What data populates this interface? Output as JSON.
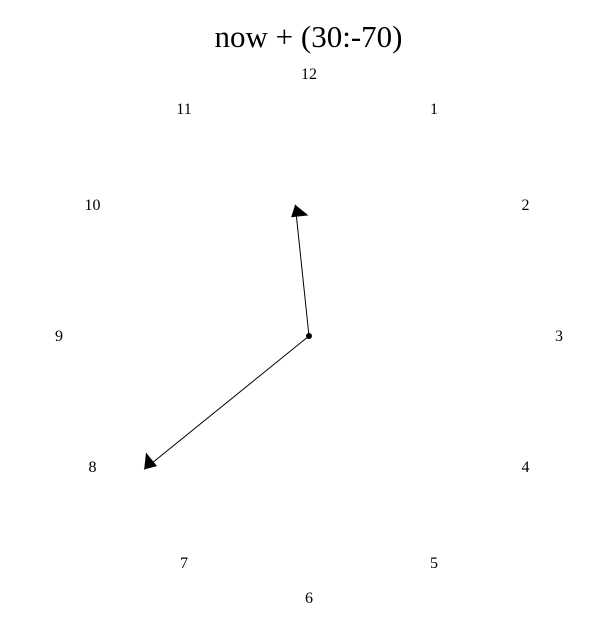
{
  "title": "now + (30:-70)",
  "colors": {
    "ink": "#000000",
    "background": "#ffffff"
  },
  "clock": {
    "hour_labels": [
      "12",
      "1",
      "2",
      "3",
      "4",
      "5",
      "6",
      "7",
      "8",
      "9",
      "10",
      "11"
    ],
    "hands": [
      {
        "name": "hour-hand",
        "points_to_hour": 11.8
      },
      {
        "name": "minute-hand",
        "points_to_minute": 38.5
      }
    ]
  }
}
